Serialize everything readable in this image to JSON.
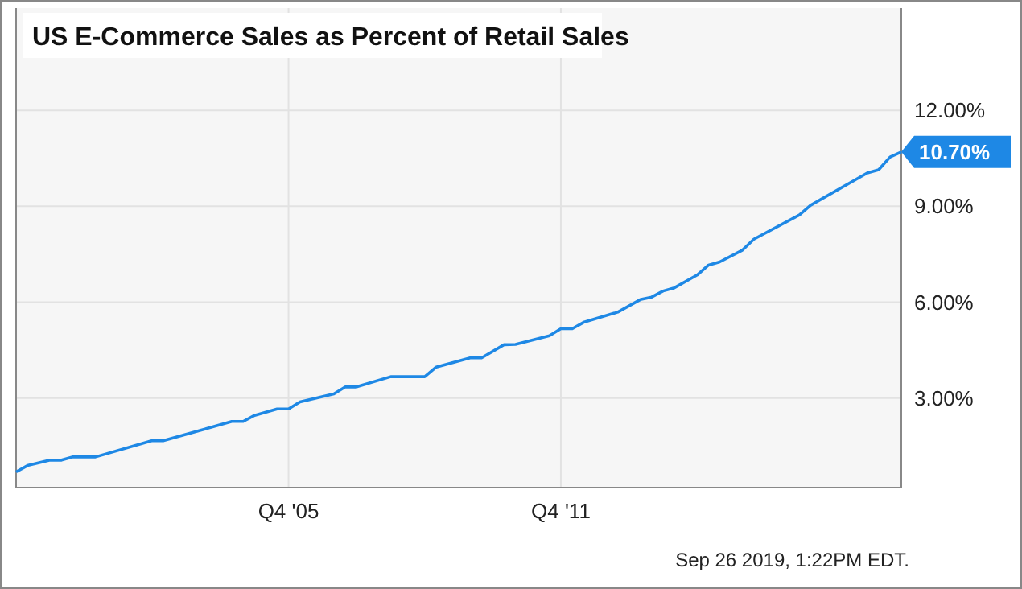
{
  "chart_data": {
    "type": "line",
    "title": "US E-Commerce Sales as Percent of Retail Sales",
    "x": [
      "1999-10",
      "2000-01",
      "2000-07",
      "2000-10",
      "2001-01",
      "2001-07",
      "2002-10",
      "2003-01",
      "2004-07",
      "2004-10",
      "2005-01",
      "2005-07",
      "2005-10",
      "2006-01",
      "2006-10",
      "2007-01",
      "2007-04",
      "2008-01",
      "2008-10",
      "2009-01",
      "2009-10",
      "2010-01",
      "2010-07",
      "2010-10",
      "2011-07",
      "2011-10",
      "2012-01",
      "2012-04",
      "2013-01",
      "2013-07",
      "2013-10",
      "2014-01",
      "2014-04",
      "2014-10",
      "2015-01",
      "2015-04",
      "2015-10",
      "2016-01",
      "2017-01",
      "2017-04",
      "2018-07",
      "2018-10",
      "2019-01",
      "2019-04"
    ],
    "series": [
      {
        "color": "#1e88e5",
        "values": [
          0.69,
          0.89,
          1.06,
          1.06,
          1.16,
          1.16,
          1.67,
          1.67,
          2.27,
          2.27,
          2.46,
          2.66,
          2.66,
          2.88,
          3.13,
          3.35,
          3.35,
          3.67,
          3.67,
          3.97,
          4.26,
          4.26,
          4.67,
          4.68,
          4.95,
          5.17,
          5.17,
          5.37,
          5.69,
          6.08,
          6.16,
          6.35,
          6.45,
          6.85,
          7.16,
          7.26,
          7.63,
          7.97,
          8.73,
          9.03,
          10.04,
          10.14,
          10.54,
          10.7
        ]
      }
    ],
    "xlim": [
      "1999-10",
      "2019-04"
    ],
    "xticks": [
      {
        "value": "2005-10",
        "label": "Q4 '05"
      },
      {
        "value": "2011-10",
        "label": "Q4 '11"
      }
    ],
    "ylim": [
      0.2,
      15.2
    ],
    "yticks": [
      {
        "value": 3,
        "label": "3.00%"
      },
      {
        "value": 6,
        "label": "6.00%"
      },
      {
        "value": 9,
        "label": "9.00%"
      },
      {
        "value": 12,
        "label": "12.00%"
      }
    ],
    "grid": true,
    "marker": "none",
    "line_style": "solid",
    "annotations": [
      {
        "text": "10.70%",
        "x": "2019-04",
        "y": 10.7
      },
      "Sep 26 2019, 1:22PM EDT."
    ]
  }
}
